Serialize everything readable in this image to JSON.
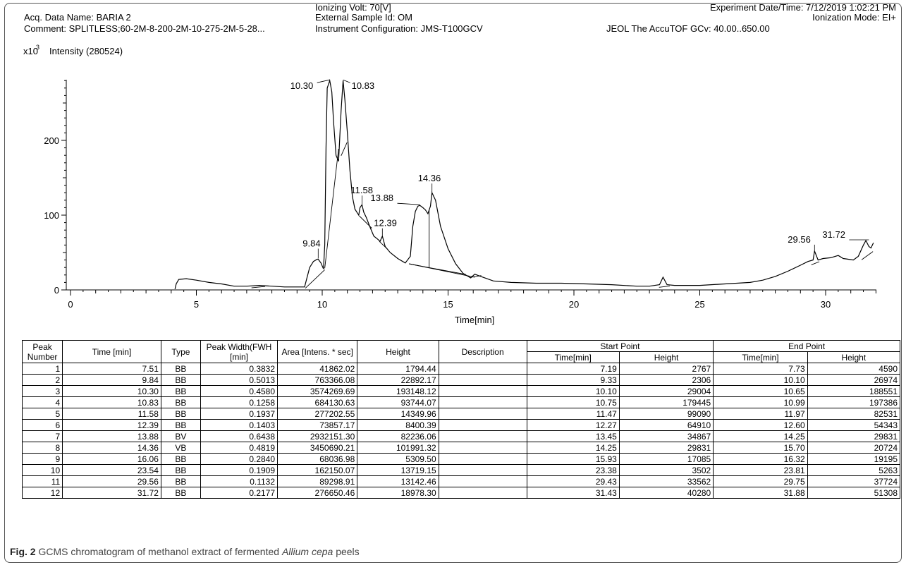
{
  "header": {
    "acq_name": "Acq. Data Name: BARIA 2",
    "comment": "Comment: SPLITLESS;60-2M-8-200-2M-10-275-2M-5-28...",
    "ionizing_volt": "Ionizing Volt: 70[V]",
    "sample_id": "External Sample Id: OM",
    "instrument": "Instrument Configuration: JMS-T100GCV",
    "experiment_date": "Experiment Date/Time: 7/12/2019 1:02:21 PM",
    "ionization_mode": "Ionization Mode: EI+",
    "jeol": "JEOL The AccuTOF GCv: 40.00..650.00"
  },
  "chart_data": {
    "type": "line",
    "title": "",
    "xlabel": "Time[min]",
    "ylabel": "Intensity (280524)",
    "y_multiplier": "x10",
    "y_multiplier_exp": "3",
    "xlim": [
      0,
      32
    ],
    "ylim": [
      0,
      280
    ],
    "x_ticks": [
      0,
      5,
      10,
      15,
      20,
      25,
      30
    ],
    "y_ticks": [
      0,
      100,
      200
    ],
    "grid": false,
    "series": [
      {
        "x": [
          4.15,
          4.2,
          4.3,
          4.6,
          5.0,
          5.5,
          6.0,
          6.5,
          7.0,
          7.5,
          8.0,
          8.5,
          9.0,
          9.3,
          9.5,
          9.65,
          9.8,
          9.84,
          9.95,
          10.05,
          10.1,
          10.15,
          10.2,
          10.3,
          10.38,
          10.45,
          10.55,
          10.65,
          10.75,
          10.83,
          10.9,
          11.0,
          11.1,
          11.2,
          11.3,
          11.45,
          11.5,
          11.58,
          11.65,
          11.75,
          11.9,
          12.05,
          12.2,
          12.3,
          12.39,
          12.5,
          12.7,
          13.0,
          13.3,
          13.5,
          13.6,
          13.7,
          13.8,
          13.88,
          14.0,
          14.1,
          14.2,
          14.3,
          14.36,
          14.5,
          14.7,
          15.0,
          15.3,
          15.6,
          15.9,
          16.06,
          16.3,
          16.8,
          17.5,
          18.5,
          19.5,
          20.5,
          21.5,
          22.5,
          23.0,
          23.4,
          23.54,
          23.7,
          24.0,
          25.0,
          26.0,
          27.0,
          27.5,
          28.0,
          28.5,
          29.0,
          29.3,
          29.5,
          29.56,
          29.7,
          29.9,
          30.2,
          30.5,
          30.7,
          30.9,
          31.1,
          31.3,
          31.5,
          31.6,
          31.72,
          31.8,
          31.9
        ],
        "y": [
          1,
          8,
          14,
          15,
          13,
          10,
          8,
          5,
          5,
          6,
          5,
          4,
          4,
          4,
          30,
          38,
          41,
          41,
          36,
          28,
          60,
          190,
          270,
          280,
          265,
          225,
          180,
          172,
          240,
          280,
          255,
          210,
          160,
          125,
          108,
          100,
          110,
          114,
          104,
          97,
          84,
          72,
          68,
          65,
          72,
          58,
          50,
          42,
          36,
          45,
          85,
          105,
          112,
          113,
          110,
          107,
          102,
          112,
          130,
          120,
          85,
          55,
          35,
          22,
          16,
          21,
          18,
          12,
          10,
          9,
          9,
          8,
          7,
          5,
          5,
          7,
          17,
          7,
          6,
          6,
          8,
          10,
          13,
          18,
          25,
          33,
          38,
          40,
          52,
          40,
          42,
          43,
          46,
          42,
          41,
          40,
          45,
          60,
          66,
          58,
          56,
          63
        ]
      }
    ],
    "peak_labels": [
      {
        "label": "9.84",
        "x": 9.84,
        "y": 41
      },
      {
        "label": "10.30",
        "x": 10.3,
        "y": 280
      },
      {
        "label": "10.83",
        "x": 10.83,
        "y": 280
      },
      {
        "label": "11.58",
        "x": 11.58,
        "y": 114
      },
      {
        "label": "12.39",
        "x": 12.39,
        "y": 72
      },
      {
        "label": "13.88",
        "x": 13.88,
        "y": 113
      },
      {
        "label": "14.36",
        "x": 14.36,
        "y": 130
      },
      {
        "label": "29.56",
        "x": 29.56,
        "y": 52
      },
      {
        "label": "31.72",
        "x": 31.72,
        "y": 66
      }
    ]
  },
  "table": {
    "group_headers": {
      "start_point": "Start Point",
      "end_point": "End Point"
    },
    "headers": {
      "peak": "Peak Number",
      "time": "Time [min]",
      "type": "Type",
      "width": "Peak Width(FWH [min]",
      "area": "Area [Intens. * sec]",
      "height": "Height",
      "description": "Description",
      "start_time": "Time[min]",
      "start_height": "Height",
      "end_time": "Time[min]",
      "end_height": "Height"
    },
    "rows": [
      [
        "1",
        "7.51",
        "BB",
        "0.3832",
        "41862.02",
        "1794.44",
        "",
        "7.19",
        "2767",
        "7.73",
        "4590"
      ],
      [
        "2",
        "9.84",
        "BB",
        "0.5013",
        "763366.08",
        "22892.17",
        "",
        "9.33",
        "2306",
        "10.10",
        "26974"
      ],
      [
        "3",
        "10.30",
        "BB",
        "0.4580",
        "3574269.69",
        "193148.12",
        "",
        "10.10",
        "29004",
        "10.65",
        "188551"
      ],
      [
        "4",
        "10.83",
        "BB",
        "0.1258",
        "684130.63",
        "93744.07",
        "",
        "10.75",
        "179445",
        "10.99",
        "197386"
      ],
      [
        "5",
        "11.58",
        "BB",
        "0.1937",
        "277202.55",
        "14349.96",
        "",
        "11.47",
        "99090",
        "11.97",
        "82531"
      ],
      [
        "6",
        "12.39",
        "BB",
        "0.1403",
        "73857.17",
        "8400.39",
        "",
        "12.27",
        "64910",
        "12.60",
        "54343"
      ],
      [
        "7",
        "13.88",
        "BV",
        "0.6438",
        "2932151.30",
        "82236.06",
        "",
        "13.45",
        "34867",
        "14.25",
        "29831"
      ],
      [
        "8",
        "14.36",
        "VB",
        "0.4819",
        "3450690.21",
        "101991.32",
        "",
        "14.25",
        "29831",
        "15.70",
        "20724"
      ],
      [
        "9",
        "16.06",
        "BB",
        "0.2840",
        "68036.98",
        "5309.50",
        "",
        "15.93",
        "17085",
        "16.32",
        "19195"
      ],
      [
        "10",
        "23.54",
        "BB",
        "0.1909",
        "162150.07",
        "13719.15",
        "",
        "23.38",
        "3502",
        "23.81",
        "5263"
      ],
      [
        "11",
        "29.56",
        "BB",
        "0.1132",
        "89298.91",
        "13142.46",
        "",
        "29.43",
        "33562",
        "29.75",
        "37724"
      ],
      [
        "12",
        "31.72",
        "BB",
        "0.2177",
        "276650.46",
        "18978.30",
        "",
        "31.43",
        "40280",
        "31.88",
        "51308"
      ]
    ]
  },
  "caption": {
    "label": "Fig. 2",
    "text_before": "GCMS chromatogram of methanol extract of fermented",
    "text_italic": "Allium cepa",
    "text_after": "peels"
  }
}
